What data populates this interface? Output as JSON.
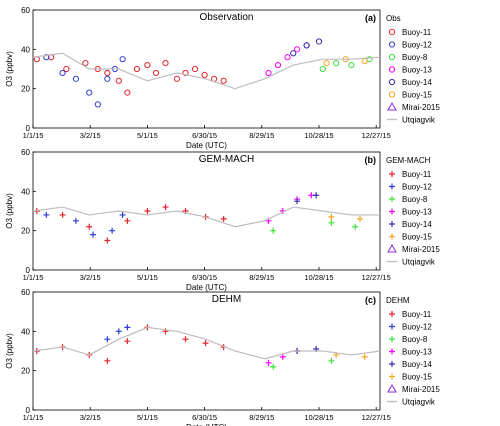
{
  "chart_data": [
    {
      "type": "scatter",
      "panel_label": "(a)",
      "title": "Observation",
      "legend_title": "Obs",
      "marker": "circle",
      "xlabel": "Date (UTC)",
      "ylabel": "O3 (ppbv)",
      "ylim": [
        0,
        60
      ],
      "yticks": [
        0,
        20,
        40,
        60
      ],
      "xlim": [
        "2015-01-01",
        "2015-12-31"
      ],
      "xticks": [
        "1/1/15",
        "3/2/15",
        "5/1/15",
        "6/30/15",
        "8/29/15",
        "10/28/15",
        "12/27/15"
      ],
      "legend_position": "right",
      "series": [
        {
          "name": "Buoy-11",
          "color": "#e8232a",
          "x": [
            "2015-01-05",
            "2015-01-20",
            "2015-02-05",
            "2015-02-25",
            "2015-03-10",
            "2015-03-20",
            "2015-04-01",
            "2015-04-10",
            "2015-04-20",
            "2015-05-01",
            "2015-05-10",
            "2015-05-20",
            "2015-06-01",
            "2015-06-10",
            "2015-06-20",
            "2015-06-30",
            "2015-07-10",
            "2015-07-20"
          ],
          "y": [
            35,
            36,
            30,
            33,
            30,
            28,
            24,
            18,
            30,
            32,
            28,
            33,
            25,
            28,
            30,
            27,
            25,
            24
          ]
        },
        {
          "name": "Buoy-12",
          "color": "#2f3dd6",
          "x": [
            "2015-01-15",
            "2015-02-01",
            "2015-02-15",
            "2015-03-01",
            "2015-03-10",
            "2015-03-20",
            "2015-03-28",
            "2015-04-05"
          ],
          "y": [
            36,
            28,
            25,
            18,
            12,
            25,
            30,
            35
          ]
        },
        {
          "name": "Buoy-8",
          "color": "#3ee03e",
          "x": [
            "2015-11-01",
            "2015-11-15",
            "2015-12-01",
            "2015-12-20"
          ],
          "y": [
            30,
            33,
            32,
            35
          ]
        },
        {
          "name": "Buoy-13",
          "color": "#ff00ff",
          "x": [
            "2015-09-05",
            "2015-09-15",
            "2015-09-25",
            "2015-10-05",
            "2015-10-15"
          ],
          "y": [
            28,
            32,
            36,
            40,
            42
          ]
        },
        {
          "name": "Buoy-14",
          "color": "#3a2fa8",
          "x": [
            "2015-10-01",
            "2015-10-15",
            "2015-10-28"
          ],
          "y": [
            38,
            42,
            44
          ]
        },
        {
          "name": "Buoy-15",
          "color": "#f5a623",
          "x": [
            "2015-11-05",
            "2015-11-25",
            "2015-12-15"
          ],
          "y": [
            33,
            35,
            34
          ]
        },
        {
          "name": "Mirai-2015",
          "color": "#8b2be2",
          "marker": "triangle",
          "x": [],
          "y": []
        },
        {
          "name": "Utqiagvik",
          "color": "#bdbdbd",
          "line": true,
          "x": [
            "2015-01-01",
            "2015-02-01",
            "2015-03-01",
            "2015-04-01",
            "2015-05-01",
            "2015-06-01",
            "2015-07-01",
            "2015-08-01",
            "2015-09-01",
            "2015-10-01",
            "2015-11-01",
            "2015-12-01",
            "2015-12-31"
          ],
          "y": [
            36,
            38,
            30,
            30,
            24,
            28,
            25,
            20,
            25,
            32,
            35,
            35,
            36
          ]
        }
      ]
    },
    {
      "type": "scatter",
      "panel_label": "(b)",
      "title": "GEM-MACH",
      "legend_title": "GEM-MACH",
      "marker": "plus",
      "xlabel": "Date (UTC)",
      "ylabel": "O3 (ppbv)",
      "ylim": [
        0,
        60
      ],
      "yticks": [
        0,
        20,
        40,
        60
      ],
      "xlim": [
        "2015-01-01",
        "2015-12-31"
      ],
      "xticks": [
        "1/1/15",
        "3/2/15",
        "5/1/15",
        "6/30/15",
        "8/29/15",
        "10/28/15",
        "12/27/15"
      ],
      "legend_position": "right",
      "series": [
        {
          "name": "Buoy-11",
          "color": "#e8232a",
          "x": [
            "2015-01-05",
            "2015-02-01",
            "2015-03-01",
            "2015-03-20",
            "2015-04-10",
            "2015-05-01",
            "2015-05-20",
            "2015-06-10",
            "2015-07-01",
            "2015-07-20"
          ],
          "y": [
            30,
            28,
            22,
            15,
            25,
            30,
            32,
            30,
            27,
            26
          ]
        },
        {
          "name": "Buoy-12",
          "color": "#2f3dd6",
          "x": [
            "2015-01-15",
            "2015-02-15",
            "2015-03-05",
            "2015-03-25",
            "2015-04-05"
          ],
          "y": [
            28,
            25,
            18,
            20,
            28
          ]
        },
        {
          "name": "Buoy-8",
          "color": "#3ee03e",
          "x": [
            "2015-09-10",
            "2015-11-10",
            "2015-12-05"
          ],
          "y": [
            20,
            24,
            22
          ]
        },
        {
          "name": "Buoy-13",
          "color": "#ff00ff",
          "x": [
            "2015-09-05",
            "2015-09-20",
            "2015-10-05",
            "2015-10-20"
          ],
          "y": [
            25,
            30,
            36,
            38
          ]
        },
        {
          "name": "Buoy-14",
          "color": "#3a2fa8",
          "x": [
            "2015-10-05",
            "2015-10-25"
          ],
          "y": [
            35,
            38
          ]
        },
        {
          "name": "Buoy-15",
          "color": "#f5a623",
          "x": [
            "2015-11-10",
            "2015-12-10"
          ],
          "y": [
            27,
            26
          ]
        },
        {
          "name": "Mirai-2015",
          "color": "#8b2be2",
          "marker": "triangle",
          "x": [],
          "y": []
        },
        {
          "name": "Utqiagvik",
          "color": "#bdbdbd",
          "line": true,
          "x": [
            "2015-01-01",
            "2015-02-01",
            "2015-03-01",
            "2015-04-01",
            "2015-05-01",
            "2015-06-01",
            "2015-07-01",
            "2015-08-01",
            "2015-09-01",
            "2015-10-01",
            "2015-11-01",
            "2015-12-01",
            "2015-12-31"
          ],
          "y": [
            30,
            32,
            28,
            30,
            28,
            30,
            27,
            22,
            25,
            32,
            30,
            28,
            28
          ]
        }
      ]
    },
    {
      "type": "scatter",
      "panel_label": "(c)",
      "title": "DEHM",
      "legend_title": "DEHM",
      "marker": "plus",
      "xlabel": "Date (UTC)",
      "ylabel": "O3 (ppbv)",
      "ylim": [
        0,
        60
      ],
      "yticks": [
        0,
        20,
        40,
        60
      ],
      "xlim": [
        "2015-01-01",
        "2015-12-31"
      ],
      "xticks": [
        "1/1/15",
        "3/2/15",
        "5/1/15",
        "6/30/15",
        "8/29/15",
        "10/28/15",
        "12/27/15"
      ],
      "legend_position": "right",
      "series": [
        {
          "name": "Buoy-11",
          "color": "#e8232a",
          "x": [
            "2015-01-05",
            "2015-02-01",
            "2015-03-01",
            "2015-03-20",
            "2015-04-10",
            "2015-05-01",
            "2015-05-20",
            "2015-06-10",
            "2015-07-01",
            "2015-07-20"
          ],
          "y": [
            30,
            32,
            28,
            25,
            35,
            42,
            40,
            36,
            34,
            32
          ]
        },
        {
          "name": "Buoy-12",
          "color": "#2f3dd6",
          "x": [
            "2015-03-20",
            "2015-04-01",
            "2015-04-10"
          ],
          "y": [
            36,
            40,
            42
          ]
        },
        {
          "name": "Buoy-8",
          "color": "#3ee03e",
          "x": [
            "2015-09-10",
            "2015-11-10"
          ],
          "y": [
            22,
            25
          ]
        },
        {
          "name": "Buoy-13",
          "color": "#ff00ff",
          "x": [
            "2015-09-05",
            "2015-09-20",
            "2015-10-05"
          ],
          "y": [
            24,
            27,
            30
          ]
        },
        {
          "name": "Buoy-14",
          "color": "#3a2fa8",
          "x": [
            "2015-10-05",
            "2015-10-25"
          ],
          "y": [
            30,
            31
          ]
        },
        {
          "name": "Buoy-15",
          "color": "#f5a623",
          "x": [
            "2015-11-15",
            "2015-12-15"
          ],
          "y": [
            28,
            27
          ]
        },
        {
          "name": "Mirai-2015",
          "color": "#8b2be2",
          "marker": "triangle",
          "x": [],
          "y": []
        },
        {
          "name": "Utqiagvik",
          "color": "#bdbdbd",
          "line": true,
          "x": [
            "2015-01-01",
            "2015-02-01",
            "2015-03-01",
            "2015-04-01",
            "2015-05-01",
            "2015-06-01",
            "2015-07-01",
            "2015-08-01",
            "2015-09-01",
            "2015-10-01",
            "2015-11-01",
            "2015-12-01",
            "2015-12-31"
          ],
          "y": [
            30,
            32,
            28,
            36,
            42,
            40,
            36,
            30,
            26,
            30,
            30,
            28,
            30
          ]
        }
      ]
    }
  ]
}
